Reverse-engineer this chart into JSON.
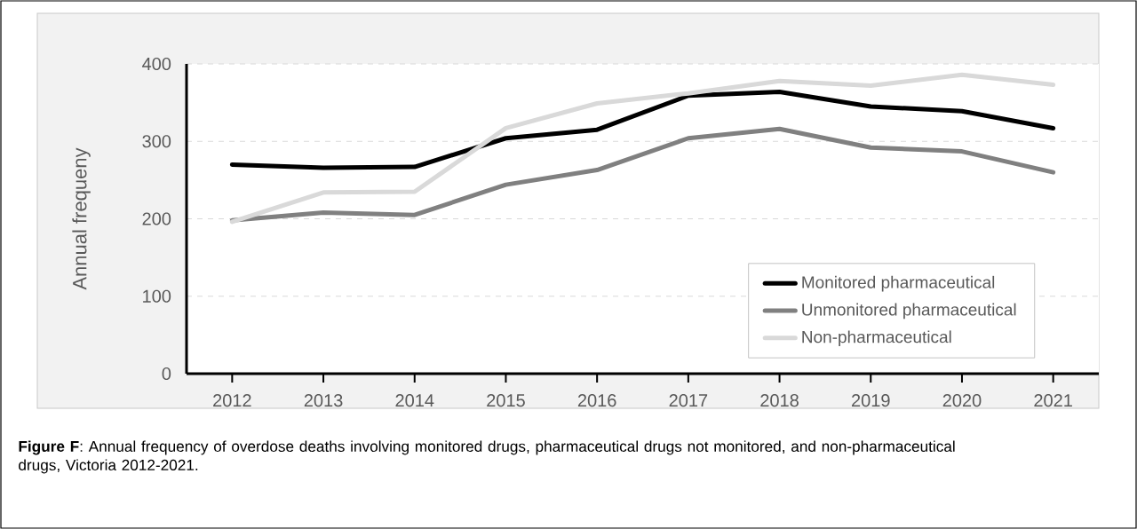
{
  "chart_data": {
    "type": "line",
    "categories": [
      "2012",
      "2013",
      "2014",
      "2015",
      "2016",
      "2017",
      "2018",
      "2019",
      "2020",
      "2021"
    ],
    "series": [
      {
        "name": "Monitored pharmaceutical",
        "color": "#000000",
        "values": [
          270,
          266,
          267,
          304,
          315,
          359,
          364,
          345,
          339,
          317
        ]
      },
      {
        "name": "Unmonitored pharmaceutical",
        "color": "#808080",
        "values": [
          198,
          208,
          205,
          244,
          263,
          304,
          316,
          292,
          287,
          260
        ]
      },
      {
        "name": "Non-pharmaceutical",
        "color": "#d9d9d9",
        "values": [
          196,
          234,
          235,
          317,
          349,
          362,
          378,
          372,
          386,
          373
        ]
      }
    ],
    "ylabel": "Annual frequeny",
    "ylim": [
      0,
      400
    ],
    "yticks": [
      0,
      100,
      200,
      300,
      400
    ],
    "grid": "y",
    "legend": "bottom right",
    "marker": "none",
    "line_style": "solid",
    "annotations": [
      "**Figure F**: Annual frequency of overdose deaths involving monitored drugs, pharmaceutical drugs not monitored, and non-pharmaceutical drugs, Victoria 2012-2021."
    ]
  }
}
